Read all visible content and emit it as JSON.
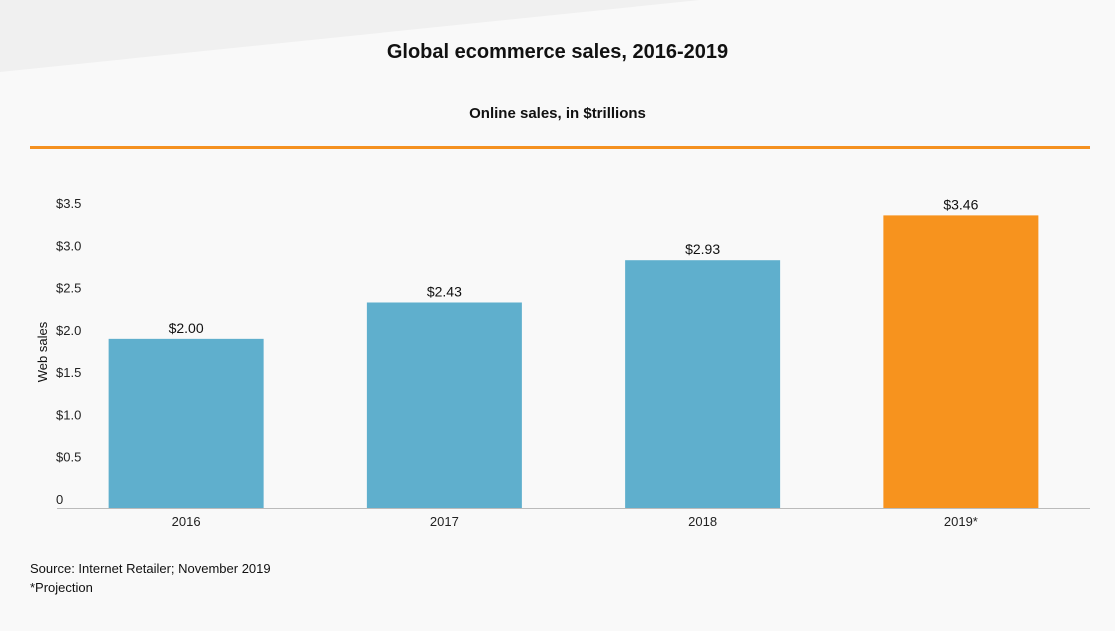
{
  "header": {
    "title": "Global ecommerce sales, 2016-2019",
    "subtitle": "Online sales, in $trillions"
  },
  "footer": {
    "source": "Source: Internet Retailer; November 2019",
    "note": "*Projection"
  },
  "colors": {
    "accent": "#f59120",
    "bar": "#5fafcd",
    "highlight": "#f7931e",
    "axis": "#bbbbbb",
    "background": "#f9f9f9"
  },
  "chart_data": {
    "type": "bar",
    "title": "Global ecommerce sales, 2016-2019",
    "subtitle": "Online sales, in $trillions",
    "ylabel": "Web sales",
    "xlabel": "",
    "categories": [
      "2016",
      "2017",
      "2018",
      "2019*"
    ],
    "values": [
      2.0,
      2.43,
      2.93,
      3.46
    ],
    "data_labels": [
      "$2.00",
      "$2.43",
      "$2.93",
      "$3.46"
    ],
    "highlight_index": 3,
    "ylim": [
      0,
      3.5
    ],
    "yticks": [
      {
        "value": 0,
        "label": "0"
      },
      {
        "value": 0.5,
        "label": "$0.5"
      },
      {
        "value": 1.0,
        "label": "$1.0"
      },
      {
        "value": 1.5,
        "label": "$1.5"
      },
      {
        "value": 2.0,
        "label": "$2.0"
      },
      {
        "value": 2.5,
        "label": "$2.5"
      },
      {
        "value": 3.0,
        "label": "$3.0"
      },
      {
        "value": 3.5,
        "label": "$3.5"
      }
    ],
    "grid": false,
    "legend": "none"
  }
}
